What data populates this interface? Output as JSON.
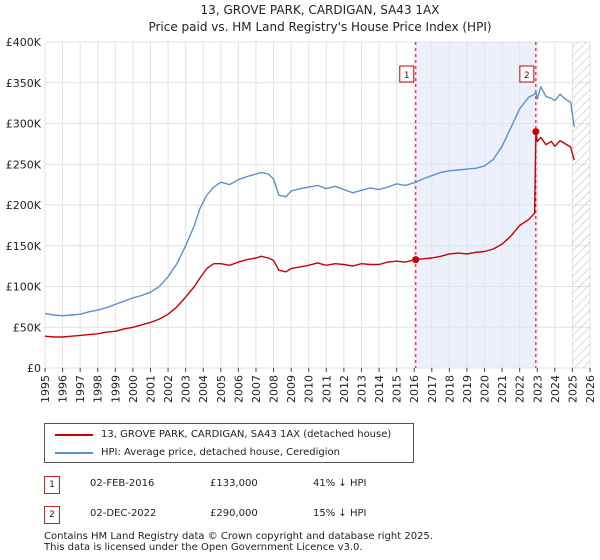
{
  "chart_data": {
    "type": "line",
    "title": "13, GROVE PARK, CARDIGAN, SA43 1AX",
    "subtitle": "Price paid vs. HM Land Registry's House Price Index (HPI)",
    "xlabel": "",
    "ylabel": "",
    "xlim": [
      1995,
      2026
    ],
    "ylim": [
      0,
      400000
    ],
    "x_ticks": [
      "1995",
      "1996",
      "1997",
      "1998",
      "1999",
      "2000",
      "2001",
      "2002",
      "2003",
      "2004",
      "2005",
      "2006",
      "2007",
      "2008",
      "2009",
      "2010",
      "2011",
      "2012",
      "2013",
      "2014",
      "2015",
      "2016",
      "2017",
      "2018",
      "2019",
      "2020",
      "2021",
      "2022",
      "2023",
      "2024",
      "2025",
      "2026"
    ],
    "y_ticks": [
      {
        "value": 0,
        "label": "£0"
      },
      {
        "value": 50000,
        "label": "£50K"
      },
      {
        "value": 100000,
        "label": "£100K"
      },
      {
        "value": 150000,
        "label": "£150K"
      },
      {
        "value": 200000,
        "label": "£200K"
      },
      {
        "value": 250000,
        "label": "£250K"
      },
      {
        "value": 300000,
        "label": "£300K"
      },
      {
        "value": 350000,
        "label": "£350K"
      },
      {
        "value": 400000,
        "label": "£400K"
      }
    ],
    "grid": true,
    "shaded_range": [
      2016.09,
      2022.92
    ],
    "hatched_from": 2025.0,
    "series": [
      {
        "name": "13, GROVE PARK, CARDIGAN, SA43 1AX (detached house)",
        "color": "#cc0000",
        "x": [
          1995.0,
          1995.5,
          1996.0,
          1996.5,
          1997.0,
          1997.5,
          1998.0,
          1998.5,
          1999.0,
          1999.5,
          2000.0,
          2000.5,
          2001.0,
          2001.5,
          2002.0,
          2002.5,
          2003.0,
          2003.5,
          2003.8,
          2004.2,
          2004.6,
          2005.0,
          2005.5,
          2006.0,
          2006.5,
          2007.0,
          2007.3,
          2007.7,
          2008.0,
          2008.3,
          2008.7,
          2009.0,
          2009.5,
          2010.0,
          2010.5,
          2011.0,
          2011.5,
          2012.0,
          2012.5,
          2013.0,
          2013.5,
          2014.0,
          2014.5,
          2015.0,
          2015.5,
          2016.09,
          2016.5,
          2017.0,
          2017.5,
          2018.0,
          2018.5,
          2019.0,
          2019.5,
          2020.0,
          2020.5,
          2021.0,
          2021.5,
          2022.0,
          2022.5,
          2022.85,
          2022.92,
          2023.0,
          2023.2,
          2023.5,
          2023.8,
          2024.0,
          2024.3,
          2024.6,
          2024.9,
          2025.1
        ],
        "values": [
          39000,
          38000,
          38000,
          39000,
          40000,
          41000,
          42000,
          44000,
          45000,
          48000,
          50000,
          53000,
          56000,
          60000,
          66000,
          75000,
          87000,
          100000,
          110000,
          122000,
          128000,
          128000,
          126000,
          130000,
          133000,
          135000,
          137000,
          135000,
          132000,
          120000,
          118000,
          122000,
          124000,
          126000,
          129000,
          126000,
          128000,
          127000,
          125000,
          128000,
          127000,
          127000,
          130000,
          131000,
          130000,
          133000,
          134000,
          135000,
          137000,
          140000,
          141000,
          140000,
          142000,
          143000,
          146000,
          152000,
          162000,
          175000,
          182000,
          190000,
          290000,
          278000,
          283000,
          274000,
          278000,
          272000,
          279000,
          275000,
          271000,
          255000
        ]
      },
      {
        "name": "HPI: Average price, detached house, Ceredigion",
        "color": "#5b8fd4",
        "x": [
          1995.0,
          1995.5,
          1996.0,
          1996.5,
          1997.0,
          1997.5,
          1998.0,
          1998.5,
          1999.0,
          1999.5,
          2000.0,
          2000.5,
          2001.0,
          2001.5,
          2002.0,
          2002.5,
          2003.0,
          2003.5,
          2003.8,
          2004.2,
          2004.6,
          2005.0,
          2005.5,
          2006.0,
          2006.5,
          2007.0,
          2007.3,
          2007.7,
          2008.0,
          2008.3,
          2008.7,
          2009.0,
          2009.5,
          2010.0,
          2010.5,
          2011.0,
          2011.5,
          2012.0,
          2012.5,
          2013.0,
          2013.5,
          2014.0,
          2014.5,
          2015.0,
          2015.5,
          2016.09,
          2016.5,
          2017.0,
          2017.5,
          2018.0,
          2018.5,
          2019.0,
          2019.5,
          2020.0,
          2020.5,
          2021.0,
          2021.5,
          2022.0,
          2022.5,
          2022.85,
          2022.92,
          2023.0,
          2023.2,
          2023.5,
          2023.8,
          2024.0,
          2024.3,
          2024.6,
          2024.9,
          2025.1
        ],
        "values": [
          67000,
          65000,
          64000,
          65000,
          66000,
          69000,
          71000,
          74000,
          78000,
          82000,
          86000,
          89000,
          93000,
          100000,
          112000,
          128000,
          150000,
          175000,
          195000,
          212000,
          222000,
          228000,
          225000,
          231000,
          235000,
          238000,
          240000,
          238000,
          232000,
          212000,
          210000,
          217000,
          220000,
          222000,
          224000,
          220000,
          223000,
          219000,
          215000,
          218000,
          221000,
          219000,
          222000,
          226000,
          224000,
          228000,
          232000,
          236000,
          240000,
          242000,
          243000,
          244000,
          245000,
          248000,
          256000,
          272000,
          295000,
          318000,
          332000,
          336000,
          339000,
          330000,
          345000,
          333000,
          331000,
          328000,
          336000,
          330000,
          326000,
          296000
        ]
      }
    ],
    "annotations": [
      {
        "label": "1",
        "x": 2016.09,
        "value": 133000
      },
      {
        "label": "2",
        "x": 2022.92,
        "value": 290000
      }
    ]
  },
  "legend": {
    "items": [
      {
        "label": "13, GROVE PARK, CARDIGAN, SA43 1AX (detached house)",
        "color": "#cc0000"
      },
      {
        "label": "HPI: Average price, detached house, Ceredigion",
        "color": "#5b8fd4"
      }
    ]
  },
  "sales": [
    {
      "num": "1",
      "date": "02-FEB-2016",
      "price": "£133,000",
      "hpi": "41% ↓ HPI"
    },
    {
      "num": "2",
      "date": "02-DEC-2022",
      "price": "£290,000",
      "hpi": "15% ↓ HPI"
    }
  ],
  "footer": {
    "line1": "Contains HM Land Registry data © Crown copyright and database right 2025.",
    "line2": "This data is licensed under the Open Government Licence v3.0."
  }
}
